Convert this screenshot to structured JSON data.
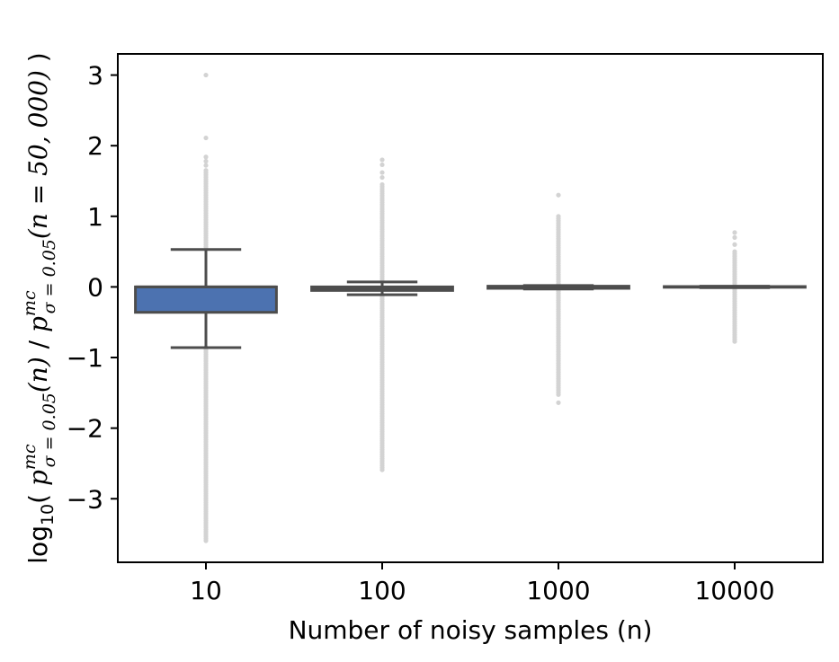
{
  "chart_data": {
    "type": "box",
    "xlabel": "Number of noisy samples (n)",
    "ylabel": {
      "log": "log",
      "log_sub": "10",
      "open": "( ",
      "p1": "p",
      "p1_sup": "mc",
      "p1_sub": "σ = 0.05",
      "p1_arg": "(n)",
      "slash": " / ",
      "p2": "p",
      "p2_sup": "mc",
      "p2_sub": "σ = 0.05",
      "p2_arg": "(n = 50, 000)",
      "close": " )"
    },
    "ylim": [
      -3.9,
      3.3
    ],
    "yticks": [
      3,
      2,
      1,
      0,
      -1,
      -2,
      -3
    ],
    "ytick_labels": [
      "3",
      "2",
      "1",
      "0",
      "−1",
      "−2",
      "−3"
    ],
    "categories": [
      "10",
      "100",
      "1000",
      "10000"
    ],
    "boxes": [
      {
        "category": "10",
        "q1": -0.36,
        "median": 0.0,
        "q3": 0.0,
        "whisker_low": -0.86,
        "whisker_high": 0.53,
        "outlier_low": -3.6,
        "outlier_high": 1.65,
        "extra_outliers": [
          1.72,
          1.78,
          1.84,
          2.11,
          3.0
        ]
      },
      {
        "category": "100",
        "q1": -0.05,
        "median": -0.02,
        "q3": 0.0,
        "whisker_low": -0.11,
        "whisker_high": 0.07,
        "outlier_low": -2.6,
        "outlier_high": 1.45,
        "extra_outliers": [
          1.55,
          1.62,
          1.73,
          1.8
        ]
      },
      {
        "category": "1000",
        "q1": -0.02,
        "median": 0.0,
        "q3": 0.01,
        "whisker_low": -0.03,
        "whisker_high": 0.02,
        "outlier_low": -1.55,
        "outlier_high": 1.0,
        "extra_outliers": [
          -1.64,
          1.3
        ]
      },
      {
        "category": "10000",
        "q1": -0.005,
        "median": 0.0,
        "q3": 0.005,
        "whisker_low": -0.01,
        "whisker_high": 0.01,
        "outlier_low": -0.78,
        "outlier_high": 0.5,
        "extra_outliers": [
          0.6,
          0.7,
          0.77
        ]
      }
    ],
    "box_color": "#4c72b0",
    "line_color": "#4d4d4d",
    "outlier_color": "#d3d3d3",
    "grid": false,
    "legend": "none"
  }
}
